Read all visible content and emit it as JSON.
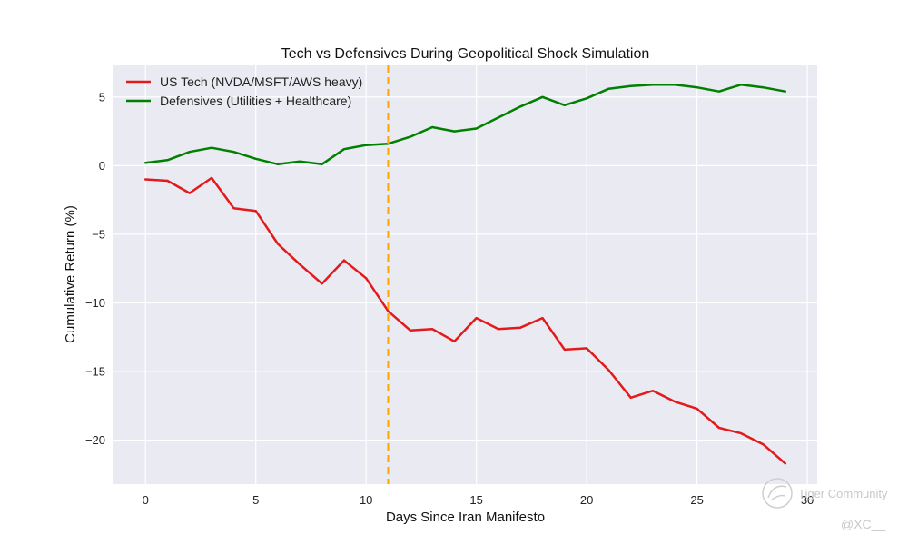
{
  "chart_data": {
    "type": "line",
    "title": "Tech vs Defensives During Geopolitical Shock Simulation",
    "xlabel": "Days Since Iran Manifesto",
    "ylabel": "Cumulative Return (%)",
    "xlim": [
      -1.45,
      30.45
    ],
    "ylim": [
      -23.2,
      7.3
    ],
    "xticks": [
      0,
      5,
      10,
      15,
      20,
      25,
      30
    ],
    "yticks": [
      -20,
      -15,
      -10,
      -5,
      0,
      5
    ],
    "grid": true,
    "legend_position": "top-left",
    "x": [
      0,
      1,
      2,
      3,
      4,
      5,
      6,
      7,
      8,
      9,
      10,
      11,
      12,
      13,
      14,
      15,
      16,
      17,
      18,
      19,
      20,
      21,
      22,
      23,
      24,
      25,
      26,
      27,
      28,
      29
    ],
    "series": [
      {
        "name": "US Tech (NVDA/MSFT/AWS heavy)",
        "color": "#e31a1c",
        "values": [
          -1.0,
          -1.1,
          -2.0,
          -0.9,
          -3.1,
          -3.3,
          -5.7,
          -7.2,
          -8.6,
          -6.9,
          -8.2,
          -10.6,
          -12.0,
          -11.9,
          -12.8,
          -11.1,
          -11.9,
          -11.8,
          -11.1,
          -13.4,
          -13.3,
          -14.9,
          -16.9,
          -16.4,
          -17.2,
          -17.7,
          -19.1,
          -19.5,
          -20.3,
          -21.7
        ]
      },
      {
        "name": "Defensives (Utilities + Healthcare)",
        "color": "#008000",
        "values": [
          0.2,
          0.4,
          1.0,
          1.3,
          1.0,
          0.5,
          0.1,
          0.3,
          0.1,
          1.2,
          1.5,
          1.6,
          2.1,
          2.8,
          2.5,
          2.7,
          3.5,
          4.3,
          5.0,
          4.4,
          4.9,
          5.6,
          5.8,
          5.9,
          5.9,
          5.7,
          5.4,
          5.9,
          5.7,
          5.4
        ]
      }
    ],
    "annotations": [
      {
        "type": "vertical-line",
        "x": 11,
        "color": "#ffa500",
        "style": "dashed"
      }
    ]
  },
  "watermark": {
    "brand": "Tiger Community",
    "handle": "@XC__"
  },
  "colors": {
    "plot_background": "#eaeaf2",
    "grid": "#ffffff"
  }
}
